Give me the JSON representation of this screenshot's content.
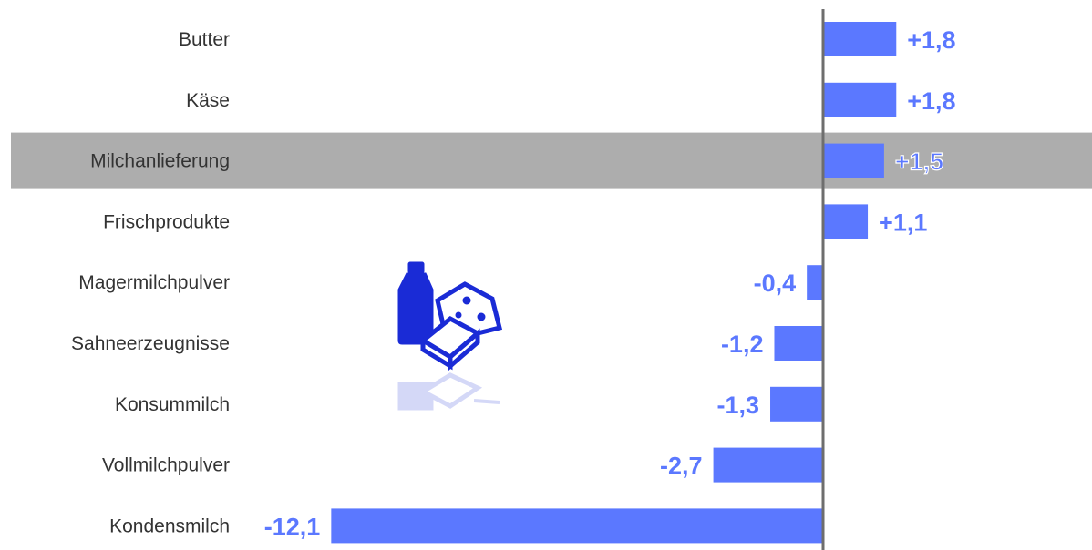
{
  "chart_data": {
    "type": "bar",
    "orientation": "horizontal",
    "categories": [
      "Butter",
      "Käse",
      "Milchanlieferung",
      "Frischprodukte",
      "Magermilchpulver",
      "Sahneerzeugnisse",
      "Konsummilch",
      "Vollmilchpulver",
      "Kondensmilch"
    ],
    "values": [
      1.8,
      1.8,
      1.5,
      1.1,
      -0.4,
      -1.2,
      -1.3,
      -2.7,
      -12.1
    ],
    "value_labels": [
      "+1,8",
      "+1,8",
      "+1,5",
      "+1,1",
      "-0,4",
      "-1,2",
      "-1,3",
      "-2,7",
      "-12,1"
    ],
    "highlighted_category": "Milchanlieferung",
    "xlim": [
      -12.1,
      1.8
    ],
    "grid": false,
    "legend": "none"
  },
  "colors": {
    "bar": "#5b78ff",
    "value_text": "#5b78ff",
    "highlight_band": "#adadad",
    "axis_line": "#6e6e6e",
    "icon": "#1a2bd6"
  },
  "icon": "dairy-products-icon"
}
